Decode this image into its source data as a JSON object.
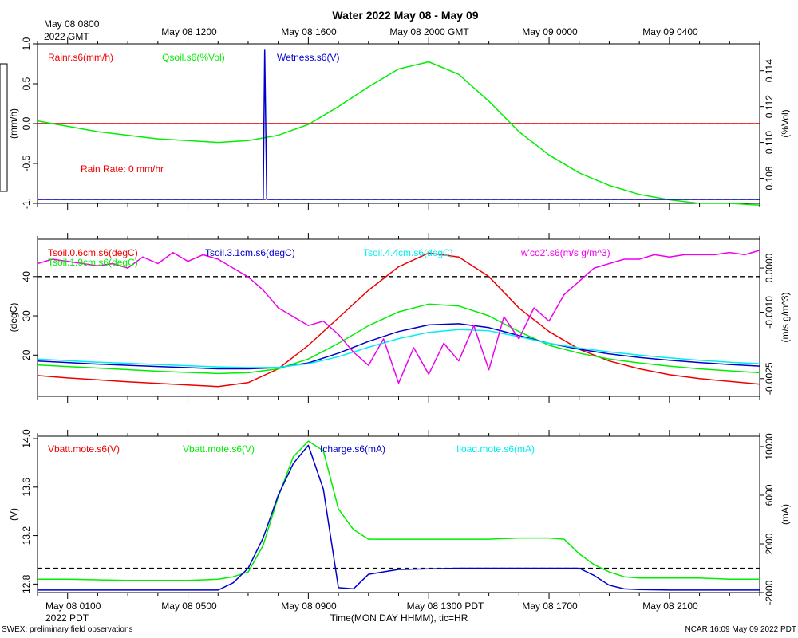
{
  "title": "Water 2022 May 08 - May 09",
  "colors": {
    "red": "#ee0000",
    "green": "#00ee00",
    "blue": "#0000cc",
    "cyan": "#00eeee",
    "magenta": "#ee00ee",
    "black": "#000000"
  },
  "top_axis": {
    "first_label_line1": "May 08 0800",
    "first_label_line2": "2022 GMT",
    "labels": [
      "May 08 1200",
      "May 08 1600",
      "May 08 2000 GMT",
      "May 09 0000",
      "May 09 0400"
    ]
  },
  "bottom_axis": {
    "labels": [
      "May 08 0100",
      "May 08 0500",
      "May 08 0900",
      "May 08 1300 PDT",
      "May 08 1700",
      "May 08 2100"
    ],
    "sublabel": "2022 PDT",
    "title": "Time(MON DAY HHMM), tic=HR"
  },
  "footer": {
    "left": "SWEX: preliminary field observations",
    "right": "NCAR 16:09 May 09 2022 PDT"
  },
  "chart_data": [
    {
      "type": "line",
      "x_unit": "hours since May 08 0000 PDT",
      "xlim": [
        0,
        24
      ],
      "left_axis": {
        "label": "(mm/h)",
        "ylim": [
          -1,
          1
        ],
        "ticks": [
          "-1.",
          "-0.5",
          "0.0",
          "0.5",
          "1.0"
        ],
        "tick_values": [
          -1,
          -0.5,
          0,
          0.5,
          1
        ]
      },
      "right_axis": {
        "label": "(%Vol)",
        "ylim": [
          0.1066,
          0.1155
        ],
        "ticks": [
          "0.108",
          "0.110",
          "0.112",
          "0.114"
        ],
        "tick_values": [
          0.108,
          0.11,
          0.112,
          0.114
        ]
      },
      "reference_lines": [
        {
          "axis": "left",
          "value": 0
        },
        {
          "axis": "left",
          "value": -0.95
        }
      ],
      "annotation": "Rain Rate: 0 mm/hr",
      "series": [
        {
          "name": "Rainr.s6(mm/h)",
          "color": "red",
          "axis": "left",
          "x": [
            0,
            24
          ],
          "y": [
            0,
            0
          ]
        },
        {
          "name": "Qsoil.s6(%Vol)",
          "color": "green",
          "axis": "right",
          "x": [
            0,
            1,
            2,
            3,
            4,
            5,
            6,
            7,
            8,
            9,
            10,
            11,
            12,
            13,
            14,
            15,
            16,
            17,
            18,
            19,
            20,
            21,
            22,
            23,
            24
          ],
          "y": [
            0.1112,
            0.1109,
            0.1106,
            0.1104,
            0.1102,
            0.1101,
            0.11,
            0.1101,
            0.1104,
            0.111,
            0.112,
            0.1131,
            0.1141,
            0.1145,
            0.1138,
            0.1123,
            0.1106,
            0.1093,
            0.1083,
            0.1076,
            0.1071,
            0.1068,
            0.1066,
            0.1066,
            0.1065
          ]
        },
        {
          "name": "Wetness.s6(V)",
          "color": "blue",
          "axis": "left",
          "x": [
            0,
            7.5,
            7.55,
            7.62,
            24
          ],
          "y": [
            -0.95,
            -0.95,
            0.92,
            -0.95,
            -0.95
          ]
        }
      ]
    },
    {
      "type": "line",
      "x_unit": "hours since May 08 0000 PDT",
      "xlim": [
        0,
        24
      ],
      "left_axis": {
        "label": "(degC)",
        "ylim": [
          9.5,
          49.5
        ],
        "ticks": [
          "20",
          "30",
          "40"
        ],
        "tick_values": [
          20,
          30,
          40
        ]
      },
      "right_axis": {
        "label": "(m/s g/m^3)",
        "ylim": [
          -0.0029,
          0.00065
        ],
        "ticks": [
          "-0.0025",
          "-0.0010",
          "0.0000"
        ],
        "tick_values": [
          -0.0025,
          -0.001,
          0
        ]
      },
      "reference_lines": [
        {
          "axis": "left",
          "value": 40
        }
      ],
      "series": [
        {
          "name": "Tsoil.0.6cm.s6(degC)",
          "color": "red",
          "axis": "left",
          "x": [
            0,
            1,
            2,
            3,
            4,
            5,
            6,
            7,
            8,
            9,
            10,
            11,
            12,
            13,
            14,
            15,
            16,
            17,
            18,
            19,
            20,
            21,
            22,
            23,
            24
          ],
          "y": [
            14.8,
            14.2,
            13.7,
            13.2,
            12.8,
            12.4,
            12.0,
            13.0,
            16.5,
            22.5,
            29.5,
            36.5,
            42.5,
            46.0,
            45.0,
            40.0,
            32.0,
            26.0,
            21.5,
            18.5,
            16.5,
            15.0,
            14.0,
            13.3,
            12.6
          ]
        },
        {
          "name": "Tsoil.1.9cm.s6(degC)",
          "color": "green",
          "axis": "left",
          "x": [
            0,
            1,
            2,
            3,
            4,
            5,
            6,
            7,
            8,
            9,
            10,
            11,
            12,
            13,
            14,
            15,
            16,
            17,
            18,
            19,
            20,
            21,
            22,
            23,
            24
          ],
          "y": [
            17.5,
            17.1,
            16.7,
            16.3,
            15.9,
            15.6,
            15.3,
            15.5,
            16.5,
            19.0,
            23.0,
            27.5,
            31.0,
            33.0,
            32.5,
            30.0,
            26.0,
            22.5,
            20.5,
            19.0,
            18.0,
            17.2,
            16.5,
            16.0,
            15.5
          ]
        },
        {
          "name": "Tsoil.3.1cm.s6(degC)",
          "color": "blue",
          "axis": "left",
          "x": [
            0,
            1,
            2,
            3,
            4,
            5,
            6,
            7,
            8,
            9,
            10,
            11,
            12,
            13,
            14,
            15,
            16,
            17,
            18,
            19,
            20,
            21,
            22,
            23,
            24
          ],
          "y": [
            18.5,
            18.1,
            17.7,
            17.4,
            17.1,
            16.8,
            16.5,
            16.5,
            16.8,
            18.0,
            20.5,
            23.5,
            26.0,
            27.7,
            28.0,
            27.0,
            25.0,
            23.0,
            21.5,
            20.3,
            19.4,
            18.7,
            18.1,
            17.6,
            17.2
          ]
        },
        {
          "name": "Tsoil.4.4cm.s6(degC)",
          "color": "cyan",
          "axis": "left",
          "x": [
            0,
            1,
            2,
            3,
            4,
            5,
            6,
            7,
            8,
            9,
            10,
            11,
            12,
            13,
            14,
            15,
            16,
            17,
            18,
            19,
            20,
            21,
            22,
            23,
            24
          ],
          "y": [
            19.0,
            18.6,
            18.2,
            17.9,
            17.6,
            17.3,
            17.0,
            16.8,
            16.9,
            17.8,
            19.6,
            22.0,
            24.2,
            25.8,
            26.5,
            26.2,
            24.7,
            23.0,
            21.8,
            20.8,
            20.0,
            19.3,
            18.7,
            18.2,
            17.8
          ]
        },
        {
          "name": "w'co2'.s6(m/s g/m^3)",
          "color": "magenta",
          "axis": "right",
          "x": [
            0,
            0.5,
            1,
            1.5,
            2,
            2.5,
            3,
            3.5,
            4,
            4.5,
            5,
            5.5,
            6,
            6.5,
            7,
            7.5,
            8,
            8.5,
            9,
            9.5,
            10,
            10.5,
            11,
            11.5,
            12,
            12.5,
            13,
            13.5,
            14,
            14.5,
            15,
            15.5,
            16,
            16.5,
            17,
            17.5,
            18,
            18.5,
            19,
            19.5,
            20,
            20.5,
            21,
            21.5,
            22,
            22.5,
            23,
            23.5,
            24
          ],
          "y": [
            0.0001,
            0.0002,
            0.00015,
            0.0001,
            5e-05,
            0.0001,
            0.0,
            0.00025,
            0.0001,
            0.00035,
            0.00015,
            0.0003,
            0.0002,
            0.0,
            -0.0002,
            -0.0005,
            -0.0009,
            -0.0011,
            -0.0013,
            -0.0012,
            -0.0015,
            -0.0019,
            -0.0022,
            -0.0016,
            -0.0026,
            -0.0018,
            -0.0024,
            -0.0017,
            -0.0021,
            -0.0013,
            -0.0023,
            -0.0011,
            -0.0016,
            -0.0009,
            -0.0012,
            -0.0006,
            -0.0003,
            0.0,
            0.0001,
            0.0002,
            0.0002,
            0.0003,
            0.00025,
            0.0003,
            0.0003,
            0.0003,
            0.00035,
            0.0003,
            0.0004
          ]
        }
      ]
    },
    {
      "type": "line",
      "x_unit": "hours since May 08 0000 PDT",
      "xlim": [
        0,
        24
      ],
      "left_axis": {
        "label": "(V)",
        "ylim": [
          12.73,
          14.02
        ],
        "ticks": [
          "12.8",
          "13.2",
          "13.6",
          "14.0"
        ],
        "tick_values": [
          12.8,
          13.2,
          13.6,
          14.0
        ]
      },
      "right_axis": {
        "label": "(mA)",
        "ylim": [
          -2000,
          10850
        ],
        "ticks": [
          "-2000",
          "2000",
          "6000",
          "10000"
        ],
        "tick_values": [
          -2000,
          2000,
          6000,
          10000
        ]
      },
      "reference_lines": [
        {
          "axis": "right",
          "value": 0
        }
      ],
      "series": [
        {
          "name": "Vbatt.mote.s6(V)",
          "color": "red",
          "axis": "left",
          "x": [],
          "y": []
        },
        {
          "name": "Vbatt.mote.s6(V)",
          "color": "green",
          "axis": "left",
          "x": [
            0,
            1,
            2,
            3,
            4,
            5,
            6,
            6.5,
            7,
            7.5,
            8,
            8.5,
            9,
            9.5,
            10,
            10.5,
            11,
            12,
            13,
            14,
            15,
            16,
            17,
            17.5,
            18,
            18.5,
            19,
            19.5,
            20,
            21,
            22,
            23,
            24
          ],
          "y": [
            12.84,
            12.84,
            12.835,
            12.83,
            12.83,
            12.83,
            12.84,
            12.86,
            12.9,
            13.12,
            13.52,
            13.85,
            13.98,
            13.9,
            13.42,
            13.25,
            13.17,
            13.17,
            13.17,
            13.17,
            13.17,
            13.18,
            13.18,
            13.17,
            13.05,
            12.96,
            12.9,
            12.86,
            12.85,
            12.85,
            12.85,
            12.84,
            12.84
          ]
        },
        {
          "name": "Icharge.s6(mA)",
          "color": "blue",
          "axis": "right",
          "x": [
            0,
            1,
            2,
            3,
            4,
            5,
            6,
            6.5,
            7,
            7.5,
            8,
            8.5,
            9,
            9.5,
            10,
            10.5,
            11,
            12,
            13,
            14,
            15,
            16,
            17,
            18,
            18.5,
            19,
            19.5,
            20,
            21,
            22,
            23,
            24
          ],
          "y": [
            -1800,
            -1800,
            -1800,
            -1800,
            -1800,
            -1800,
            -1800,
            -1200,
            0,
            2500,
            6000,
            8600,
            10100,
            6500,
            -1600,
            -1700,
            -500,
            -100,
            -50,
            0,
            0,
            0,
            0,
            0,
            -600,
            -1400,
            -1700,
            -1750,
            -1800,
            -1800,
            -1800,
            -1800
          ]
        },
        {
          "name": "Iload.mote.s6(mA)",
          "color": "cyan",
          "axis": "right",
          "x": [],
          "y": []
        }
      ]
    }
  ]
}
